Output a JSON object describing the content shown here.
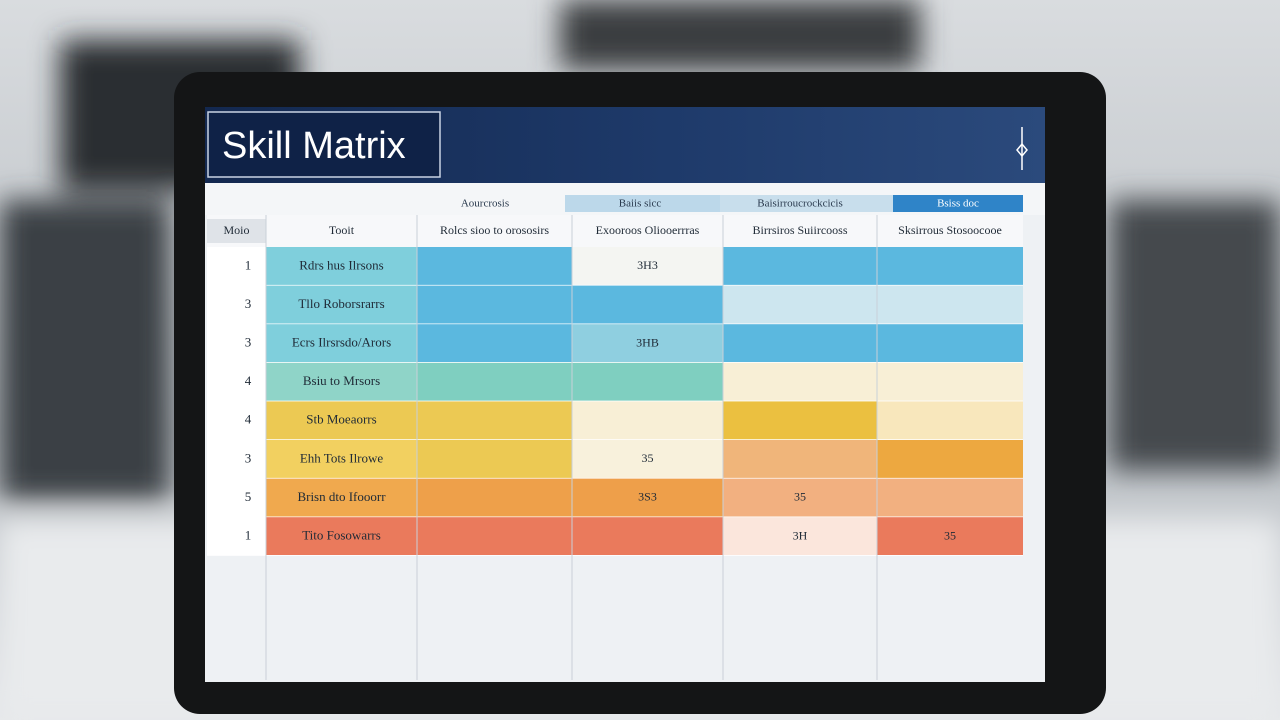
{
  "header": {
    "title": "Skill Matrix"
  },
  "group_headers": [
    "Aourcrosis",
    "Baiis sicc",
    "Baisirroucrockcicis",
    "Bsiss doc"
  ],
  "table": {
    "columns": [
      "Moio",
      "Tooit",
      "Rolcs sioo to orososirs",
      "Exooroos Oliooerrras",
      "Birrsiros Suiircooss",
      "Sksirrous Stosoocooe"
    ],
    "rows": [
      {
        "no": "1",
        "skill": "Rdrs hus Ilrsons",
        "cells": {
          "3": "3H3"
        }
      },
      {
        "no": "3",
        "skill": "Tllo Roborsrarrs",
        "cells": {}
      },
      {
        "no": "3",
        "skill": "Ecrs Ilrsrsdo/Arors",
        "cells": {
          "3": "3HB"
        }
      },
      {
        "no": "4",
        "skill": "Bsiu to Mrsors",
        "cells": {}
      },
      {
        "no": "4",
        "skill": "Stb Moeaorrs",
        "cells": {}
      },
      {
        "no": "3",
        "skill": "Ehh Tots Ilrowe",
        "cells": {
          "3": "35"
        }
      },
      {
        "no": "5",
        "skill": "Brisn dto Ifooorr",
        "cells": {
          "3": "3S3",
          "4": "35"
        }
      },
      {
        "no": "1",
        "skill": "Tito Fosowarrs",
        "cells": {
          "4": "3H",
          "5": "35"
        }
      }
    ]
  }
}
